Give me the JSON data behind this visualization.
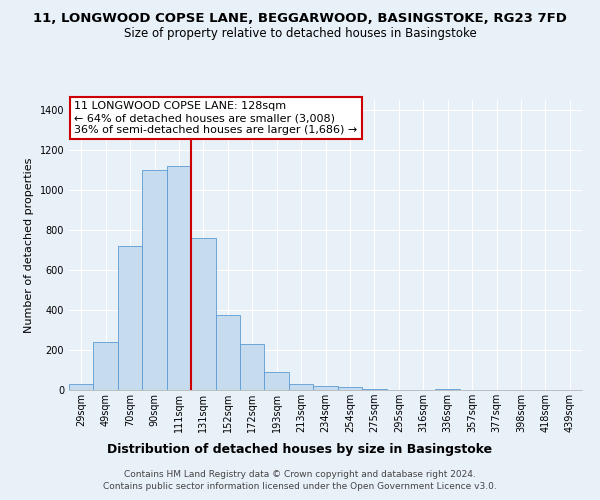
{
  "title_line1": "11, LONGWOOD COPSE LANE, BEGGARWOOD, BASINGSTOKE, RG23 7FD",
  "title_line2": "Size of property relative to detached houses in Basingstoke",
  "xlabel": "Distribution of detached houses by size in Basingstoke",
  "ylabel": "Number of detached properties",
  "bin_labels": [
    "29sqm",
    "49sqm",
    "70sqm",
    "90sqm",
    "111sqm",
    "131sqm",
    "152sqm",
    "172sqm",
    "193sqm",
    "213sqm",
    "234sqm",
    "254sqm",
    "275sqm",
    "295sqm",
    "316sqm",
    "336sqm",
    "357sqm",
    "377sqm",
    "398sqm",
    "418sqm",
    "439sqm"
  ],
  "bar_heights": [
    30,
    240,
    720,
    1100,
    1120,
    760,
    375,
    228,
    90,
    30,
    20,
    15,
    5,
    0,
    0,
    5,
    0,
    0,
    0,
    0,
    0
  ],
  "bar_color": "#c6dcee",
  "bar_edge_color": "#5b9bd5",
  "vline_color": "#cc0000",
  "vline_pos": 4.5,
  "annotation_title": "11 LONGWOOD COPSE LANE: 128sqm",
  "annotation_line1": "← 64% of detached houses are smaller (3,008)",
  "annotation_line2": "36% of semi-detached houses are larger (1,686) →",
  "annotation_box_color": "#ffffff",
  "annotation_box_edge": "#cc0000",
  "ylim": [
    0,
    1450
  ],
  "yticks": [
    0,
    200,
    400,
    600,
    800,
    1000,
    1200,
    1400
  ],
  "footer1": "Contains HM Land Registry data © Crown copyright and database right 2024.",
  "footer2": "Contains public sector information licensed under the Open Government Licence v3.0.",
  "bg_color": "#e8f0f8",
  "grid_color": "#ffffff",
  "title_fontsize": 9.5,
  "subtitle_fontsize": 8.5,
  "xlabel_fontsize": 9,
  "ylabel_fontsize": 8,
  "tick_fontsize": 7,
  "footer_fontsize": 6.5,
  "annotation_fontsize": 8
}
